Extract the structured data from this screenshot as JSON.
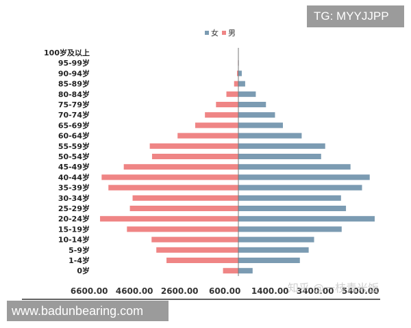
{
  "watermarks": {
    "tg": "TG: MYYJJPP",
    "site": "www.badunbearing.com",
    "zhihu": "知乎 @一枝青米饭"
  },
  "colors": {
    "female": "#7b9bb2",
    "male": "#ef8585",
    "axis": "#000000"
  },
  "chart_data": {
    "type": "bar",
    "orientation": "horizontal-population-pyramid",
    "legend_position": "top",
    "categories": [
      "100岁及以上",
      "95-99岁",
      "90-94岁",
      "85-89岁",
      "80-84岁",
      "75-79岁",
      "70-74岁",
      "65-69岁",
      "60-64岁",
      "55-59岁",
      "50-54岁",
      "45-49岁",
      "40-44岁",
      "35-39岁",
      "30-34岁",
      "25-29岁",
      "20-24岁",
      "15-19岁",
      "10-14岁",
      "5-9岁",
      "1-4岁",
      "0岁"
    ],
    "series": [
      {
        "name": "女",
        "side": "right",
        "values": [
          0,
          20,
          150,
          300,
          770,
          1220,
          1620,
          1970,
          2800,
          3840,
          3660,
          4960,
          5810,
          5470,
          4540,
          4760,
          6030,
          4570,
          3350,
          3110,
          2720,
          630
        ]
      },
      {
        "name": "男",
        "side": "left",
        "values": [
          0,
          20,
          60,
          190,
          530,
          990,
          1480,
          1910,
          2690,
          3920,
          3820,
          5070,
          6050,
          5750,
          4680,
          4800,
          6120,
          4930,
          3840,
          3630,
          3180,
          680
        ]
      }
    ],
    "xtick_labels": [
      "6600.00",
      "4600.00",
      "2600.00",
      "600.00",
      "1400.00",
      "3400.00",
      "5400.00"
    ],
    "xlim": [
      -6600,
      6000
    ],
    "grid": false
  }
}
